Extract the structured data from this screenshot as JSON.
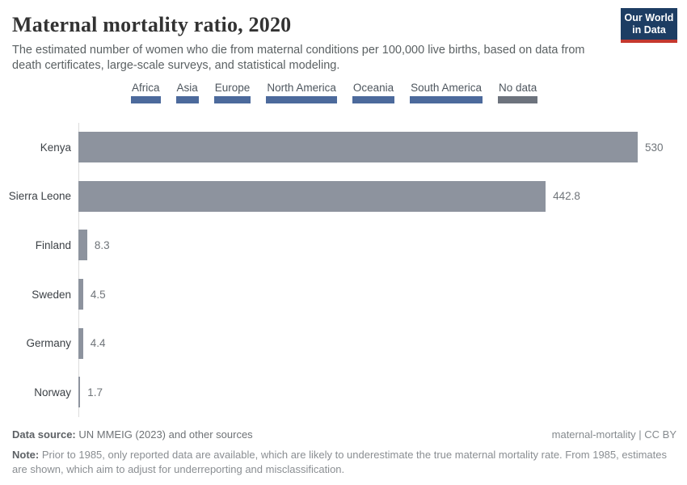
{
  "header": {
    "title": "Maternal mortality ratio, 2020",
    "subtitle": "The estimated number of women who die from maternal conditions per 100,000 live births, based on data from death certificates, large-scale surveys, and statistical modeling.",
    "logo": {
      "line1": "Our World",
      "line2": "in Data",
      "bg_color": "#1d3d63",
      "accent_color": "#c5382e"
    }
  },
  "legend": {
    "items": [
      {
        "label": "Africa",
        "color": "#4c6a9c"
      },
      {
        "label": "Asia",
        "color": "#4c6a9c"
      },
      {
        "label": "Europe",
        "color": "#4c6a9c"
      },
      {
        "label": "North America",
        "color": "#4c6a9c"
      },
      {
        "label": "Oceania",
        "color": "#4c6a9c"
      },
      {
        "label": "South America",
        "color": "#4c6a9c"
      },
      {
        "label": "No data",
        "color": "#6d737d"
      }
    ]
  },
  "chart_data": {
    "type": "bar",
    "orientation": "horizontal",
    "title": "Maternal mortality ratio, 2020",
    "categories": [
      "Kenya",
      "Sierra Leone",
      "Finland",
      "Sweden",
      "Germany",
      "Norway"
    ],
    "values": [
      530,
      442.8,
      8.3,
      4.5,
      4.4,
      1.7
    ],
    "value_labels": [
      "530",
      "442.8",
      "8.3",
      "4.5",
      "4.4",
      "1.7"
    ],
    "xlabel": "",
    "ylabel": "",
    "xlim": [
      0,
      530
    ],
    "grid": false,
    "legend_position": "top",
    "bar_color": "#8d939e",
    "axis_color": "#dcdcdc"
  },
  "footer": {
    "data_source_label": "Data source:",
    "data_source_text": "UN MMEIG (2023) and other sources",
    "license": "maternal-mortality | CC BY",
    "note_label": "Note:",
    "note_text": "Prior to 1985, only reported data are available, which are likely to underestimate the true maternal mortality rate. From 1985, estimates are shown, which aim to adjust for underreporting and misclassification."
  }
}
